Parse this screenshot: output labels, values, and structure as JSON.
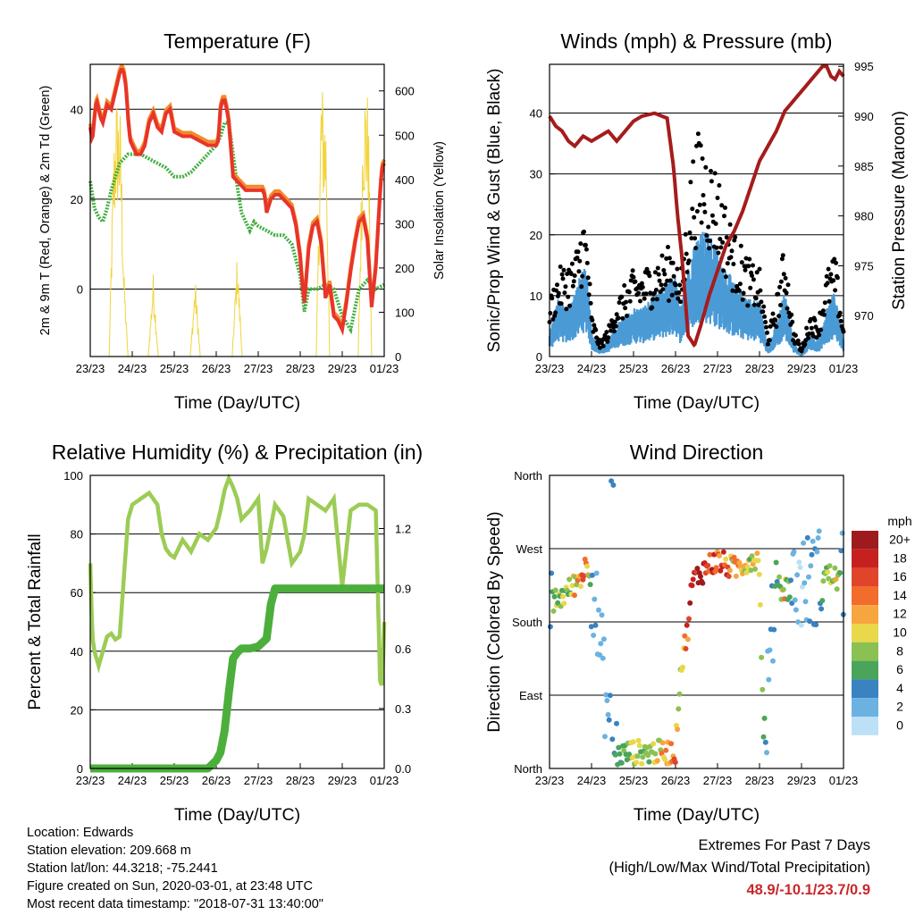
{
  "colors": {
    "temp_2m": "#e8342a",
    "temp_9m": "#f28a2a",
    "dewpoint": "#3fae3f",
    "solar": "#f2d33a",
    "wind": "#4a9ad6",
    "gust": "#000000",
    "pressure": "#a51c1c",
    "rh": "#9ccc55",
    "precip": "#4caf3c",
    "extremes": "#c8282a"
  },
  "x_ticks": [
    "23/23",
    "24/23",
    "25/23",
    "26/23",
    "27/23",
    "28/23",
    "29/23",
    "01/23"
  ],
  "x_label": "Time (Day/UTC)",
  "info": {
    "location": "Location: Edwards",
    "elevation": "Station elevation: 209.668 m",
    "latlon": "Station lat/lon: 44.3218; -75.2441",
    "created": "Figure created on Sun, 2020-03-01, at 23:48 UTC",
    "timestamp": "Most recent data timestamp: \"2018-07-31 13:40:00\""
  },
  "extremes": {
    "title": "Extremes For Past 7 Days",
    "subtitle": "(High/Low/Max Wind/Total Precipitation)",
    "values": "48.9/-10.1/23.7/0.9"
  },
  "chart_data": [
    {
      "type": "line",
      "title": "Temperature (F)",
      "xlabel": "Time (Day/UTC)",
      "ylabel": "2m & 9m T (Red, Orange) & 2m Td (Green)",
      "y2label": "Solar Insolation (Yellow)",
      "xlim": [
        0,
        7
      ],
      "ylim": [
        -15,
        50
      ],
      "y_ticks": [
        0,
        20,
        40
      ],
      "y2lim": [
        0,
        660
      ],
      "y2_ticks": [
        0,
        100,
        200,
        300,
        400,
        500,
        600
      ],
      "grid": "horizontal",
      "series": [
        {
          "axis": "left",
          "x": [
            0,
            0.05,
            0.1,
            0.15,
            0.2,
            0.25,
            0.3,
            0.4,
            0.5,
            0.6,
            0.7,
            0.75,
            0.8,
            0.85,
            0.9,
            0.95,
            1.0,
            1.05,
            1.1,
            1.2,
            1.3,
            1.4,
            1.5,
            1.6,
            1.7,
            1.8,
            1.9,
            2.0,
            2.2,
            2.4,
            2.6,
            2.8,
            2.9,
            3.0,
            3.05,
            3.1,
            3.15,
            3.2,
            3.25,
            3.3,
            3.4,
            3.5,
            3.6,
            3.7,
            3.8,
            3.9,
            4.0,
            4.1,
            4.15,
            4.2,
            4.3,
            4.4,
            4.5,
            4.6,
            4.7,
            4.8,
            4.9,
            5.0,
            5.05,
            5.1,
            5.2,
            5.3,
            5.4,
            5.5,
            5.6,
            5.7,
            5.8,
            5.9,
            6.0,
            6.1,
            6.2,
            6.3,
            6.4,
            6.5,
            6.6,
            6.7,
            6.8,
            6.9,
            6.95,
            7.0
          ],
          "values": [
            36,
            33,
            38,
            42,
            40,
            38,
            37,
            41,
            40,
            44,
            48,
            49,
            48,
            45,
            38,
            33,
            32,
            31,
            30,
            30,
            32,
            37,
            39,
            36,
            35,
            39,
            40,
            35,
            34,
            34,
            33,
            32,
            32,
            32,
            33,
            40,
            42,
            42,
            40,
            37,
            25,
            24,
            23,
            22,
            22,
            22,
            22,
            22,
            21,
            17,
            20,
            21,
            21,
            20,
            19,
            18,
            14,
            7,
            1,
            -3,
            9,
            14,
            15,
            10,
            -2,
            1,
            -6,
            -7,
            -9,
            -3,
            4,
            10,
            15,
            16,
            11,
            -4,
            5,
            21,
            27,
            28
          ]
        },
        {
          "axis": "left",
          "x": [
            0,
            0.1,
            0.2,
            0.3,
            0.4,
            0.5,
            0.6,
            0.7,
            0.8,
            0.9,
            1.0,
            1.1,
            1.2,
            1.4,
            1.6,
            1.8,
            2.0,
            2.2,
            2.4,
            2.6,
            2.8,
            3.0,
            3.1,
            3.2,
            3.3,
            3.4,
            3.5,
            3.6,
            3.7,
            3.8,
            3.9,
            4.0,
            4.2,
            4.4,
            4.6,
            4.8,
            5.0,
            5.1,
            5.2,
            5.4,
            5.6,
            5.8,
            6.0,
            6.2,
            6.4,
            6.6,
            6.8,
            7.0
          ],
          "values": [
            24,
            18,
            16,
            15,
            18,
            22,
            25,
            28,
            29,
            30,
            30,
            30,
            30,
            29,
            28,
            27,
            25,
            25,
            26,
            28,
            30,
            32,
            34,
            37,
            37,
            30,
            23,
            17,
            15,
            13,
            15,
            14,
            13,
            12,
            12,
            10,
            3,
            -5,
            0,
            0,
            1,
            0,
            -6,
            -9,
            0,
            2,
            0,
            1
          ]
        },
        {
          "axis": "right",
          "x": [
            0.45,
            0.55,
            0.62,
            0.72,
            0.8,
            0.9,
            1.38,
            1.5,
            1.62,
            2.38,
            2.5,
            2.62,
            3.38,
            3.5,
            3.62,
            5.38,
            5.5,
            5.62,
            5.7,
            6.38,
            6.5,
            6.62,
            6.7
          ],
          "values": [
            0,
            470,
            600,
            560,
            200,
            0,
            0,
            190,
            0,
            0,
            180,
            0,
            0,
            240,
            0,
            0,
            640,
            560,
            0,
            0,
            630,
            600,
            0
          ]
        }
      ]
    },
    {
      "type": "scatter",
      "title": "Winds (mph) & Pressure (mb)",
      "xlabel": "Time (Day/UTC)",
      "ylabel": "Sonic/Prop Wind & Gust (Blue, Black)",
      "y2label": "Station Pressure (Maroon)",
      "xlim": [
        0,
        7
      ],
      "ylim": [
        0,
        48
      ],
      "y_ticks": [
        0,
        10,
        20,
        30,
        40
      ],
      "y2lim": [
        965.9,
        995.2
      ],
      "y2_ticks": [
        970,
        975,
        980,
        985,
        990,
        995
      ],
      "grid": "horizontal",
      "wind_x": [
        0,
        0.2,
        0.4,
        0.6,
        0.8,
        0.9,
        1.0,
        1.2,
        1.4,
        1.6,
        1.8,
        2.0,
        2.2,
        2.4,
        2.6,
        2.8,
        3.0,
        3.1,
        3.2,
        3.4,
        3.6,
        3.8,
        4.0,
        4.2,
        4.4,
        4.6,
        4.8,
        5.0,
        5.2,
        5.4,
        5.6,
        5.8,
        6.0,
        6.2,
        6.4,
        6.6,
        6.8,
        7.0
      ],
      "wind_values": [
        3,
        7,
        6,
        8,
        11,
        10,
        3,
        1,
        2,
        4,
        5,
        6,
        6,
        7,
        8,
        9,
        10,
        6,
        9,
        13,
        16,
        15,
        13,
        11,
        9,
        8,
        7,
        7,
        1,
        4,
        8,
        2,
        0,
        3,
        2,
        6,
        8,
        2
      ],
      "gust_values": [
        8,
        12,
        13,
        14,
        20,
        17,
        6,
        2,
        4,
        8,
        10,
        12,
        12,
        13,
        14,
        15,
        16,
        10,
        16,
        28,
        32,
        28,
        26,
        21,
        17,
        15,
        13,
        12,
        3,
        8,
        16,
        4,
        1,
        6,
        5,
        12,
        14,
        4
      ],
      "series": [
        {
          "name": "",
          "axis": "right",
          "x": [
            0,
            0.15,
            0.3,
            0.45,
            0.6,
            0.8,
            1.0,
            1.2,
            1.4,
            1.6,
            1.8,
            2.0,
            2.2,
            2.5,
            2.8,
            2.95,
            3.05,
            3.15,
            3.3,
            3.45,
            3.6,
            3.8,
            4.0,
            4.2,
            4.4,
            4.6,
            4.8,
            5.0,
            5.2,
            5.4,
            5.6,
            5.8,
            6.0,
            6.2,
            6.4,
            6.5,
            6.6,
            6.7,
            6.8,
            6.9,
            7.0
          ],
          "values": [
            990,
            989,
            988.5,
            987.5,
            987,
            988,
            987.5,
            988,
            988.5,
            987.5,
            988.5,
            989.5,
            990,
            990.3,
            989.8,
            985,
            980,
            976,
            968,
            967,
            969,
            972,
            974.5,
            977,
            978.5,
            980.5,
            983,
            985.5,
            987,
            988.5,
            990.5,
            991.5,
            992.5,
            993.5,
            994.5,
            995,
            995,
            994,
            993.7,
            994.5,
            994
          ]
        }
      ]
    },
    {
      "type": "line",
      "title": "Relative Humidity (%) & Precipitation (in)",
      "xlabel": "Time (Day/UTC)",
      "ylabel": "Percent & Total Rainfall",
      "xlim": [
        0,
        7
      ],
      "ylim": [
        0,
        100
      ],
      "y_ticks": [
        0,
        20,
        40,
        60,
        80,
        100
      ],
      "y2lim": [
        0,
        1.466
      ],
      "y2_ticks": [
        "0.0",
        "0.3",
        "0.6",
        "0.9",
        "1.2"
      ],
      "grid": "horizontal",
      "series": [
        {
          "axis": "left",
          "x": [
            0,
            0.05,
            0.1,
            0.2,
            0.3,
            0.4,
            0.5,
            0.6,
            0.7,
            0.8,
            0.9,
            1.0,
            1.2,
            1.4,
            1.6,
            1.7,
            1.8,
            1.9,
            2.0,
            2.2,
            2.4,
            2.6,
            2.8,
            3.0,
            3.1,
            3.2,
            3.3,
            3.4,
            3.5,
            3.6,
            3.8,
            4.0,
            4.1,
            4.2,
            4.4,
            4.6,
            4.8,
            5.0,
            5.1,
            5.2,
            5.4,
            5.6,
            5.8,
            6.0,
            6.2,
            6.4,
            6.6,
            6.8,
            6.9,
            6.95,
            7.0
          ],
          "values": [
            70,
            45,
            40,
            35,
            40,
            45,
            46,
            44,
            45,
            65,
            85,
            90,
            92,
            94,
            90,
            80,
            75,
            73,
            72,
            78,
            74,
            80,
            78,
            82,
            88,
            95,
            99,
            96,
            92,
            85,
            88,
            92,
            70,
            75,
            90,
            86,
            70,
            74,
            80,
            92,
            90,
            88,
            92,
            62,
            88,
            90,
            90,
            88,
            30,
            28,
            50
          ]
        },
        {
          "axis": "right",
          "x": [
            0,
            2.8,
            2.9,
            3.0,
            3.1,
            3.2,
            3.3,
            3.4,
            3.5,
            3.6,
            3.8,
            4.0,
            4.2,
            4.3,
            4.4,
            4.5,
            5.5,
            6.0,
            7.0
          ],
          "values": [
            0,
            0,
            0.02,
            0.04,
            0.08,
            0.19,
            0.38,
            0.55,
            0.58,
            0.6,
            0.6,
            0.61,
            0.65,
            0.82,
            0.9,
            0.9,
            0.9,
            0.9,
            0.9
          ]
        }
      ]
    },
    {
      "type": "scatter",
      "title": "Wind Direction",
      "xlabel": "Time (Day/UTC)",
      "ylabel": "Direction (Colored By Speed)",
      "xlim": [
        0,
        7
      ],
      "ylim": [
        0,
        360
      ],
      "y_ticks": [
        "North",
        "East",
        "South",
        "West",
        "North"
      ],
      "grid": "horizontal",
      "legend": {
        "title": "mph",
        "placement": "right",
        "labels": [
          "20+",
          "18",
          "16",
          "14",
          "12",
          "10",
          "8",
          "6",
          "4",
          "2",
          "0"
        ],
        "colors": [
          "#9e1a1d",
          "#c7211f",
          "#e0452a",
          "#f26c2c",
          "#f7a53f",
          "#e8d84a",
          "#8ac152",
          "#4aa55a",
          "#3a82c0",
          "#6cb2e0",
          "#bde0f6"
        ]
      }
    }
  ]
}
